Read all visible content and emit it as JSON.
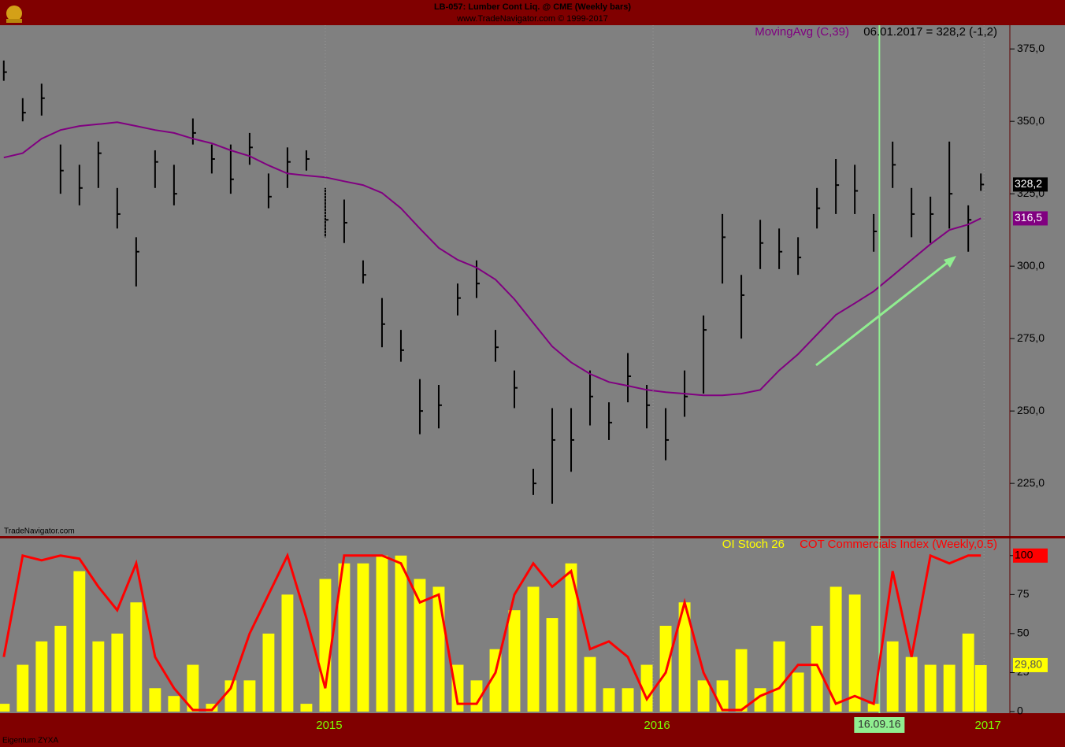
{
  "header": {
    "title": "LB-057: Lumber Cont Liq. @ CME (Weekly bars)",
    "subtitle": "www.TradeNavigator.com © 1999-2017",
    "brand": "TradeNavigator.com",
    "owner": "Eigentum ZYXA"
  },
  "chart_data": [
    {
      "type": "ohlc",
      "readout": "06.01.2017 = 328,2 (-1,2)",
      "x": [
        0,
        3,
        6,
        9,
        12,
        15,
        18,
        21,
        24,
        27,
        30,
        33,
        36,
        39,
        42,
        45,
        48,
        51,
        54,
        57,
        60,
        63,
        66,
        69,
        72,
        75,
        78,
        81,
        84,
        87,
        90,
        93,
        96,
        99,
        102,
        105,
        108,
        111,
        114,
        117,
        120,
        123,
        126,
        129,
        132,
        135,
        138,
        141,
        144,
        147,
        150,
        153,
        155
      ],
      "series": [
        {
          "name": "Lumber",
          "color": "#000000",
          "high": [
            371,
            358,
            363,
            342,
            335,
            343,
            327,
            310,
            340,
            335,
            351,
            342,
            342,
            346,
            332,
            341,
            340,
            327,
            323,
            302,
            289,
            278,
            261,
            259,
            294,
            302,
            278,
            264,
            230,
            251,
            251,
            264,
            253,
            270,
            259,
            251,
            264,
            283,
            318,
            297,
            316,
            313,
            310,
            327,
            337,
            335,
            318,
            343,
            327,
            324,
            343,
            321,
            332
          ],
          "low": [
            364,
            350,
            352,
            325,
            321,
            327,
            313,
            293,
            327,
            321,
            342,
            332,
            325,
            335,
            320,
            327,
            333,
            310,
            308,
            294,
            272,
            267,
            242,
            244,
            283,
            289,
            267,
            251,
            221,
            218,
            229,
            245,
            240,
            253,
            244,
            233,
            248,
            256,
            294,
            275,
            299,
            299,
            297,
            313,
            318,
            318,
            305,
            327,
            310,
            308,
            313,
            305,
            326
          ],
          "close": [
            367,
            353,
            358,
            333,
            327,
            339,
            318,
            305,
            336,
            325,
            346,
            337,
            330,
            341,
            324,
            336,
            337,
            316,
            315,
            297,
            280,
            271,
            250,
            252,
            289,
            294,
            272,
            258,
            225,
            240,
            240,
            255,
            246,
            262,
            252,
            240,
            255,
            278,
            310,
            290,
            308,
            305,
            303,
            320,
            328,
            326,
            312,
            335,
            318,
            318,
            325,
            316,
            328.2
          ],
          "value_label": "328,2"
        },
        {
          "name": "MovingAvg (C,39)",
          "color": "#800080",
          "values": [
            337.5,
            339,
            344,
            347,
            348.4,
            349,
            349.7,
            348.4,
            347,
            346,
            344,
            342.4,
            340,
            338,
            334.8,
            332,
            331.3,
            330.7,
            329.3,
            328,
            325.3,
            320,
            313,
            306.3,
            302.2,
            299.5,
            295.4,
            288.6,
            280.4,
            272.3,
            266.8,
            262.8,
            260,
            258.7,
            257.3,
            256.5,
            256,
            255.4,
            255.4,
            256,
            257.3,
            264,
            269.6,
            276.4,
            283.2,
            287.2,
            291.3,
            296.7,
            302.2,
            307.6,
            312.5,
            314.4,
            316.5
          ],
          "value_label": "316,5"
        }
      ],
      "xlim": [
        -0.6,
        159.6
      ],
      "ylim": [
        207.1,
        383.2
      ],
      "yticks": [
        {
          "value": 225,
          "label": "225,0"
        },
        {
          "value": 250,
          "label": "250,0"
        },
        {
          "value": 275,
          "label": "275,0"
        },
        {
          "value": 300,
          "label": "300,0"
        },
        {
          "value": 325,
          "label": "325,0"
        },
        {
          "value": 350,
          "label": "350,0"
        },
        {
          "value": 375,
          "label": "375,0"
        }
      ],
      "cursor": {
        "value": 138.9,
        "label": "16.09.16"
      },
      "background": "#808080"
    },
    {
      "type": "indicator",
      "x": [
        0,
        3,
        6,
        9,
        12,
        15,
        18,
        21,
        24,
        27,
        30,
        33,
        36,
        39,
        42,
        45,
        48,
        51,
        54,
        57,
        60,
        63,
        66,
        69,
        72,
        75,
        78,
        81,
        84,
        87,
        90,
        93,
        96,
        99,
        102,
        105,
        108,
        111,
        114,
        117,
        120,
        123,
        126,
        129,
        132,
        135,
        138,
        141,
        144,
        147,
        150,
        153,
        155
      ],
      "series": [
        {
          "name": "OI Stoch 26",
          "color": "#ffff00",
          "style": "bar",
          "values": [
            5,
            30,
            45,
            55,
            90,
            45,
            50,
            70,
            15,
            10,
            30,
            5,
            20,
            20,
            50,
            75,
            5,
            85,
            95,
            95,
            100,
            100,
            85,
            80,
            30,
            20,
            40,
            65,
            80,
            60,
            95,
            35,
            15,
            15,
            30,
            55,
            70,
            20,
            20,
            40,
            15,
            45,
            25,
            55,
            80,
            75,
            5,
            45,
            35,
            30,
            30,
            50,
            29.8
          ],
          "value_label": "29,80"
        },
        {
          "name": "COT Commercials Index (Weekly,0.5)",
          "color": "#ff0000",
          "style": "line",
          "values": [
            35,
            100,
            97,
            100,
            98,
            80,
            65,
            95,
            35,
            15,
            1,
            1,
            15,
            50,
            75,
            100,
            60,
            15,
            100,
            100,
            100,
            95,
            70,
            75,
            5,
            5,
            25,
            75,
            95,
            80,
            90,
            40,
            45,
            35,
            8,
            25,
            70,
            25,
            1,
            1,
            10,
            15,
            30,
            30,
            5,
            10,
            5,
            90,
            35,
            100,
            95,
            100,
            100
          ],
          "value_label": "100"
        }
      ],
      "xlim": [
        -0.6,
        159.6
      ],
      "ylim": [
        -1,
        111
      ],
      "yticks": [
        0,
        25,
        50,
        75,
        100
      ],
      "xticks": [
        {
          "value": 51,
          "label": "2015"
        },
        {
          "value": 103,
          "label": "2016"
        },
        {
          "value": 155.5,
          "label": "2017"
        }
      ],
      "background": "#808080"
    }
  ]
}
